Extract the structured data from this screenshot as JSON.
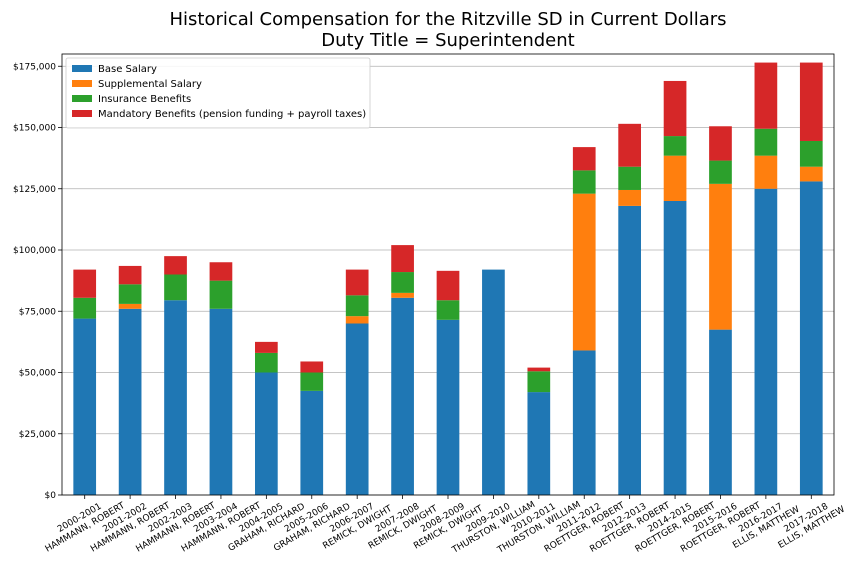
{
  "chart_data": {
    "type": "bar",
    "stacked": true,
    "title": "Historical Compensation for the Ritzville SD in Current Dollars",
    "subtitle": "Duty Title = Superintendent",
    "xlabel": "",
    "ylabel": "",
    "ylim": [
      0,
      180000
    ],
    "yticks": [
      0,
      25000,
      50000,
      75000,
      100000,
      125000,
      150000,
      175000
    ],
    "ytick_labels": [
      "$0",
      "$25,000",
      "$50,000",
      "$75,000",
      "$100,000",
      "$125,000",
      "$150,000",
      "$175,000"
    ],
    "grid": "horizontal",
    "legend_position": "upper-left",
    "categories": [
      [
        "2000-2001",
        "HAMMANN, ROBERT"
      ],
      [
        "2001-2002",
        "HAMMANN, ROBERT"
      ],
      [
        "2002-2003",
        "HAMMANN, ROBERT"
      ],
      [
        "2003-2004",
        "HAMMANN, ROBERT"
      ],
      [
        "2004-2005",
        "GRAHAM, RICHARD"
      ],
      [
        "2005-2006",
        "GRAHAM, RICHARD"
      ],
      [
        "2006-2007",
        "REMICK, DWIGHT"
      ],
      [
        "2007-2008",
        "REMICK, DWIGHT"
      ],
      [
        "2008-2009",
        "REMICK, DWIGHT"
      ],
      [
        "2009-2010",
        "THURSTON, WILLIAM"
      ],
      [
        "2010-2011",
        "THURSTON, WILLIAM"
      ],
      [
        "2011-2012",
        "ROETTGER, ROBERT"
      ],
      [
        "2012-2013",
        "ROETTGER, ROBERT"
      ],
      [
        "2014-2015",
        "ROETTGER, ROBERT"
      ],
      [
        "2015-2016",
        "ROETTGER, ROBERT"
      ],
      [
        "2016-2017",
        "ELLIS, MATTHEW"
      ],
      [
        "2017-2018",
        "ELLIS, MATTHEW"
      ]
    ],
    "series": [
      {
        "name": "Base Salary",
        "color": "#1f77b4",
        "values": [
          72000,
          76000,
          79500,
          76000,
          50000,
          42500,
          70000,
          80500,
          71500,
          92000,
          42000,
          59000,
          118000,
          120000,
          67500,
          125000,
          128000
        ]
      },
      {
        "name": "Supplemental Salary",
        "color": "#ff7f0e",
        "values": [
          0,
          2000,
          0,
          0,
          0,
          0,
          3000,
          2000,
          0,
          0,
          0,
          64000,
          6500,
          18500,
          59500,
          13500,
          6000
        ]
      },
      {
        "name": "Insurance Benefits",
        "color": "#2ca02c",
        "values": [
          8500,
          8000,
          10500,
          11500,
          8000,
          7500,
          8500,
          8500,
          8000,
          0,
          8500,
          9500,
          9500,
          8000,
          9500,
          11000,
          10500
        ]
      },
      {
        "name": "Mandatory Benefits (pension funding + payroll taxes)",
        "color": "#d62728",
        "values": [
          11500,
          7500,
          7500,
          7500,
          4500,
          4500,
          10500,
          11000,
          12000,
          0,
          1500,
          9500,
          17500,
          22500,
          14000,
          27000,
          32000
        ]
      }
    ]
  }
}
